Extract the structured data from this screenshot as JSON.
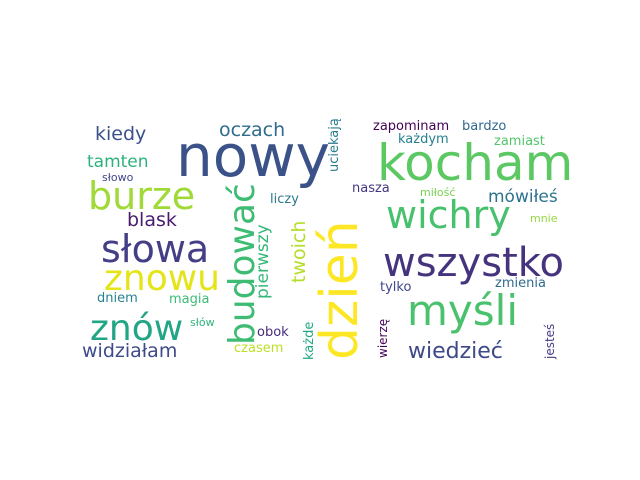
{
  "words": [
    {
      "text": "nowy",
      "color": "#3b5288"
    },
    {
      "text": "kocham",
      "color": "#5cc863"
    },
    {
      "text": "dzień",
      "color": "#fde725"
    },
    {
      "text": "wszystko",
      "color": "#46337e"
    },
    {
      "text": "budować",
      "color": "#3fbc73"
    },
    {
      "text": "burze",
      "color": "#a0da39"
    },
    {
      "text": "wichry",
      "color": "#48c16e"
    },
    {
      "text": "słowa",
      "color": "#433e85"
    },
    {
      "text": "myśli",
      "color": "#4ac16d"
    },
    {
      "text": "znowu",
      "color": "#e4e419"
    },
    {
      "text": "znów",
      "color": "#21a585"
    },
    {
      "text": "wiedzieć",
      "color": "#3e4989"
    },
    {
      "text": "widziałam",
      "color": "#3e4a89"
    },
    {
      "text": "kiedy",
      "color": "#3b518b"
    },
    {
      "text": "oczach",
      "color": "#2f6c8e"
    },
    {
      "text": "tamten",
      "color": "#2db27d"
    },
    {
      "text": "blask",
      "color": "#481b6d"
    },
    {
      "text": "mówiłeś",
      "color": "#2c728e"
    },
    {
      "text": "pierwszy",
      "color": "#35b779"
    },
    {
      "text": "twoich",
      "color": "#b5de2b"
    },
    {
      "text": "zapominam",
      "color": "#440154"
    },
    {
      "text": "bardzo",
      "color": "#31688e"
    },
    {
      "text": "każdym",
      "color": "#26818e"
    },
    {
      "text": "zamiast",
      "color": "#52c569"
    },
    {
      "text": "uciekają",
      "color": "#287d8e"
    },
    {
      "text": "liczy",
      "color": "#2a788e"
    },
    {
      "text": "nasza",
      "color": "#453781"
    },
    {
      "text": "miłość",
      "color": "#7ad151"
    },
    {
      "text": "mnie",
      "color": "#95d840"
    },
    {
      "text": "słowo",
      "color": "#404688"
    },
    {
      "text": "dniem",
      "color": "#26828e"
    },
    {
      "text": "magia",
      "color": "#3dbc74"
    },
    {
      "text": "tylko",
      "color": "#3f4788"
    },
    {
      "text": "zmienia",
      "color": "#306a8e"
    },
    {
      "text": "słów",
      "color": "#2fb47c"
    },
    {
      "text": "obok",
      "color": "#472c7a"
    },
    {
      "text": "każde",
      "color": "#22a884"
    },
    {
      "text": "czasem",
      "color": "#bddf26"
    },
    {
      "text": "wierzę",
      "color": "#450559"
    },
    {
      "text": "jesteś",
      "color": "#433d84"
    }
  ]
}
